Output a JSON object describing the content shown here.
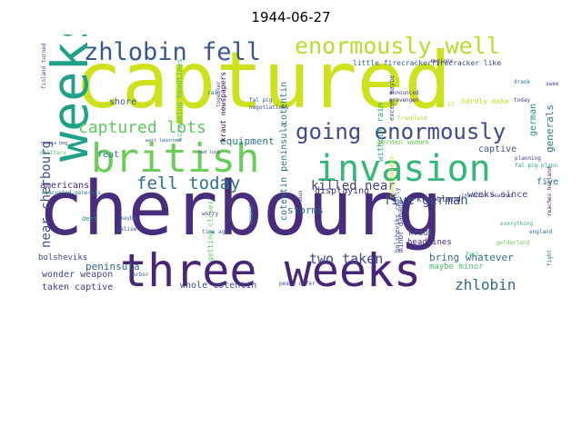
{
  "title": "1944-06-27",
  "words": [
    {
      "text": "captured",
      "color": "#cde11d"
    },
    {
      "text": "cherbourg",
      "color": "#472d7b"
    },
    {
      "text": "three weeks",
      "color": "#482576"
    },
    {
      "text": "invasion",
      "color": "#35b779"
    },
    {
      "text": "british",
      "color": "#6ccd5a"
    },
    {
      "text": "zhlobin fell",
      "color": "#38588c"
    },
    {
      "text": "enormously well",
      "color": "#b5de2b"
    },
    {
      "text": "going enormously",
      "color": "#3e4a89"
    },
    {
      "text": "weeks",
      "color": "#1fa188"
    },
    {
      "text": "fell today",
      "color": "#2c728e"
    },
    {
      "text": "captured lots",
      "color": "#5ec962"
    },
    {
      "text": "zhlobin",
      "color": "#31688e"
    },
    {
      "text": "near cherbourg",
      "color": "#3b528b"
    },
    {
      "text": "killed near",
      "color": "#414487"
    },
    {
      "text": "five german",
      "color": "#3b528b"
    },
    {
      "text": "equipment",
      "color": "#2a788e"
    },
    {
      "text": "two taken",
      "color": "#3e4989"
    },
    {
      "text": "displaying",
      "color": "#46337e"
    },
    {
      "text": "storms",
      "color": "#2d708e"
    },
    {
      "text": "feat",
      "color": "#277f8e"
    },
    {
      "text": "shore",
      "color": "#365d8d"
    },
    {
      "text": "americans",
      "color": "#482878"
    },
    {
      "text": "peninsula",
      "color": "#31688e"
    },
    {
      "text": "wonder weapon",
      "color": "#404688"
    },
    {
      "text": "taken captive",
      "color": "#443a83"
    },
    {
      "text": "whole cotentin",
      "color": "#3e4c8a"
    },
    {
      "text": "bring whatever",
      "color": "#2e6f8e"
    },
    {
      "text": "maybe minor",
      "color": "#48c16e"
    },
    {
      "text": "weeks since",
      "color": "#3f4788"
    },
    {
      "text": "five",
      "color": "#2a788e"
    },
    {
      "text": "captive",
      "color": "#39568c"
    },
    {
      "text": "kraut",
      "color": "#3a538b"
    },
    {
      "text": "krautland",
      "color": "#453781"
    },
    {
      "text": "headlines",
      "color": "#472c7a"
    },
    {
      "text": "bolsheviks",
      "color": "#3d4d8a"
    },
    {
      "text": "cotentin peninsula",
      "color": "#2c738e"
    },
    {
      "text": "generals",
      "color": "#2a768e"
    },
    {
      "text": "german",
      "color": "#20928c"
    },
    {
      "text": "hardly make",
      "color": "#c2df23"
    },
    {
      "text": "without rain",
      "color": "#29af7f"
    },
    {
      "text": "minor damage",
      "color": "#3e4989"
    },
    {
      "text": "getting closer",
      "color": "#5ec962"
    },
    {
      "text": "little firecracker",
      "color": "#35608d"
    },
    {
      "text": "firecracker like",
      "color": "#3e4a89"
    },
    {
      "text": "screaming headlines",
      "color": "#4ac16d"
    },
    {
      "text": "kraut newspapers",
      "color": "#440154"
    },
    {
      "text": "cotentin",
      "color": "#287c8e"
    },
    {
      "text": "german women",
      "color": "#6ece58"
    },
    {
      "text": "fal pig",
      "color": "#3c4f8a"
    },
    {
      "text": "regions",
      "color": "#46327e"
    },
    {
      "text": "july 27",
      "color": "#bddf26"
    },
    {
      "text": "negotiations",
      "color": "#3b528b"
    },
    {
      "text": "wait launched",
      "color": "#34618d"
    },
    {
      "text": "bad luck",
      "color": "#3d4e8a"
    },
    {
      "text": "military",
      "color": "#4ac16d"
    },
    {
      "text": "russia beg",
      "color": "#414487"
    },
    {
      "text": "except maybe",
      "color": "#3a548c"
    },
    {
      "text": "announced",
      "color": "#433e85"
    },
    {
      "text": "gravengen",
      "color": "#482979"
    },
    {
      "text": "frankland",
      "color": "#a8db34"
    },
    {
      "text": "rain",
      "color": "#31688e"
    },
    {
      "text": "together",
      "color": "#365c8d"
    },
    {
      "text": "planning",
      "color": "#443983"
    },
    {
      "text": "finland turned",
      "color": "#3b528b"
    },
    {
      "text": "fal pig planning",
      "color": "#22a884"
    },
    {
      "text": "evacuated generals",
      "color": "#2a768e"
    },
    {
      "text": "invasion reaches",
      "color": "#433d84"
    },
    {
      "text": "england",
      "color": "#2f6c8e"
    },
    {
      "text": "fail",
      "color": "#40bd72"
    },
    {
      "text": "peace offer",
      "color": "#3e4989"
    },
    {
      "text": "today",
      "color": "#3f4889"
    },
    {
      "text": "nonetheless",
      "color": "#cde11d"
    },
    {
      "text": "dent",
      "color": "#21918c"
    },
    {
      "text": "worry",
      "color": "#46337e"
    },
    {
      "text": "time ago",
      "color": "#306a8e"
    },
    {
      "text": "realise",
      "color": "#3b528b"
    },
    {
      "text": "enormous",
      "color": "#472f7d"
    },
    {
      "text": "maybe",
      "color": "#2e6e8e"
    },
    {
      "text": "moment",
      "color": "#24868e"
    },
    {
      "text": "everything",
      "color": "#37b878"
    },
    {
      "text": "reaches holland",
      "color": "#481668"
    },
    {
      "text": "gelderland",
      "color": "#6ccd5a"
    },
    {
      "text": "drank",
      "color": "#2a778e"
    },
    {
      "text": "sweet",
      "color": "#423f85"
    },
    {
      "text": "fight",
      "color": "#2d708e"
    },
    {
      "text": "harbor",
      "color": "#34608d"
    },
    {
      "text": "bolsheviks really",
      "color": "#38588c"
    }
  ]
}
